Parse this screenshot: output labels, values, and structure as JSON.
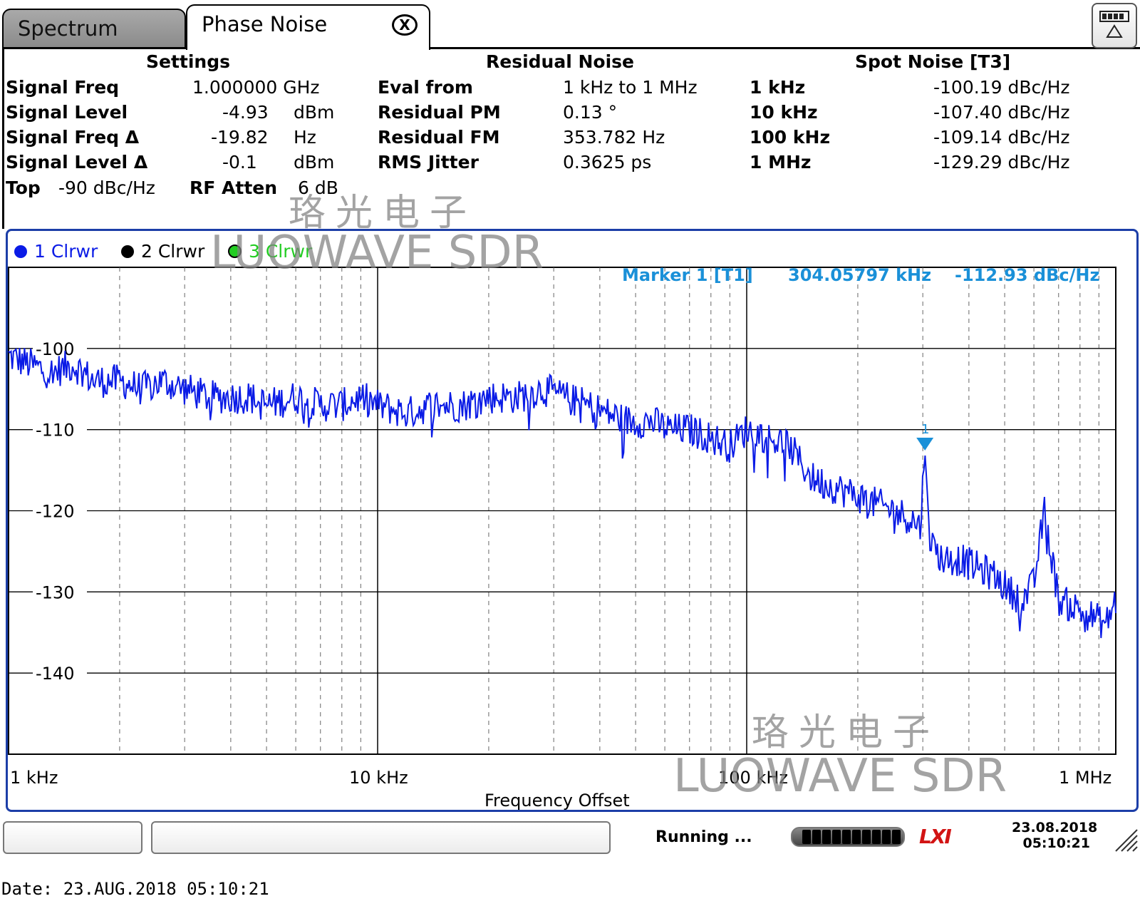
{
  "tabs": {
    "spectrum": "Spectrum",
    "phase_noise": "Phase Noise",
    "close": "X"
  },
  "settings": {
    "header": "Settings",
    "signal_freq_label": "Signal Freq",
    "signal_freq_value": "1.000000 GHz",
    "signal_level_label": "Signal Level",
    "signal_level_value": "-4.93",
    "signal_level_unit": "dBm",
    "signal_freq_delta_label": "Signal Freq Δ",
    "signal_freq_delta_value": "-19.82",
    "signal_freq_delta_unit": "Hz",
    "signal_level_delta_label": "Signal Level Δ",
    "signal_level_delta_value": "-0.1",
    "signal_level_delta_unit": "dBm",
    "top_label": "Top",
    "top_value": "-90 dBc/Hz",
    "rf_atten_label": "RF Atten",
    "rf_atten_value": "6 dB"
  },
  "residual": {
    "header": "Residual Noise",
    "eval_label": "Eval from",
    "eval_value": "1 kHz to 1 MHz",
    "pm_label": "Residual PM",
    "pm_value": "0.13 °",
    "fm_label": "Residual FM",
    "fm_value": "353.782 Hz",
    "jitter_label": "RMS Jitter",
    "jitter_value": "0.3625 ps"
  },
  "spot": {
    "header": "Spot Noise [T3]",
    "rows": [
      {
        "offset": "1 kHz",
        "value": "-100.19 dBc/Hz"
      },
      {
        "offset": "10 kHz",
        "value": "-107.40 dBc/Hz"
      },
      {
        "offset": "100 kHz",
        "value": "-109.14 dBc/Hz"
      },
      {
        "offset": "1 MHz",
        "value": "-129.29 dBc/Hz"
      }
    ]
  },
  "legend": {
    "t1": "1 Clrwr",
    "t2": "2 Clrwr",
    "t3": "3 Clrwr"
  },
  "marker": {
    "label": "Marker 1 [T1]",
    "freq": "304.05797 kHz",
    "level": "-112.93 dBc/Hz",
    "tag": "1"
  },
  "watermark": {
    "cn": "珞光电子",
    "en": "LUOWAVE SDR"
  },
  "status": {
    "running": "Running ...",
    "lxi": "LXI",
    "date": "23.08.2018",
    "time": "05:10:21"
  },
  "print_date": "Date: 23.AUG.2018  05:10:21",
  "colors": {
    "trace1": "#0a1be6",
    "trace2": "#000000",
    "trace3": "#22cc22",
    "marker": "#1a90d8",
    "frame": "#1c3ea8"
  },
  "chart_data": {
    "type": "line",
    "xscale": "log",
    "xlim": [
      1000,
      1000000
    ],
    "ylim": [
      -150,
      -90
    ],
    "yticks": [
      -100,
      -110,
      -120,
      -130,
      -140
    ],
    "ytick_labels": [
      "-100",
      "-110",
      "-120",
      "-130",
      "-140"
    ],
    "xticks": [
      1000,
      10000,
      100000,
      1000000
    ],
    "xtick_labels": [
      "1 kHz",
      "10 kHz",
      "100 kHz",
      "1 MHz"
    ],
    "xlabel": "Frequency Offset",
    "grid": true,
    "series": [
      {
        "name": "1 Clrwr",
        "x": [
          1000,
          1150,
          1300,
          1500,
          1700,
          2000,
          2300,
          2600,
          3000,
          3500,
          4000,
          4500,
          5000,
          6000,
          7000,
          8000,
          9000,
          10000,
          12000,
          14000,
          17000,
          20000,
          24000,
          28000,
          32000,
          37000,
          42000,
          48000,
          55000,
          62000,
          70000,
          80000,
          90000,
          100000,
          115000,
          130000,
          150000,
          170000,
          195000,
          220000,
          250000,
          280000,
          295000,
          304058,
          315000,
          340000,
          380000,
          420000,
          470000,
          520000,
          560000,
          600000,
          640000,
          700000,
          780000,
          860000,
          940000,
          1000000
        ],
        "y": [
          -101,
          -102,
          -103,
          -102,
          -104,
          -104,
          -105,
          -104,
          -105,
          -106,
          -106,
          -106,
          -107,
          -106,
          -107,
          -107,
          -106,
          -107,
          -108,
          -107,
          -107,
          -106,
          -106,
          -105,
          -106,
          -107,
          -108,
          -109,
          -109,
          -110,
          -110,
          -111,
          -112,
          -110,
          -111,
          -112,
          -116,
          -117,
          -118,
          -119,
          -120,
          -121,
          -122,
          -112.93,
          -124,
          -126,
          -126,
          -127,
          -128,
          -130,
          -131,
          -129,
          -120,
          -131,
          -132,
          -133,
          -134,
          -131
        ]
      }
    ]
  }
}
